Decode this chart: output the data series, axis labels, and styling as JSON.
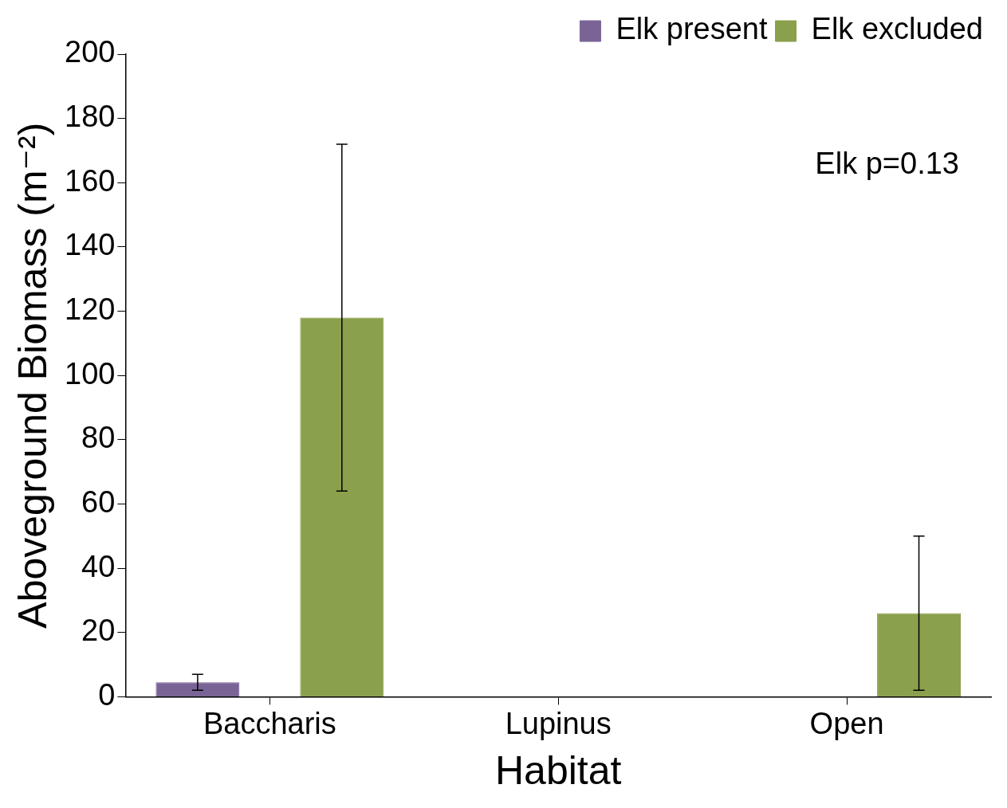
{
  "chart_data": {
    "type": "bar",
    "xlabel": "Habitat",
    "ylabel": "Aboveground Biomass (m⁻²)",
    "categories": [
      "Baccharis",
      "Lupinus",
      "Open"
    ],
    "series": [
      {
        "name": "Elk present",
        "color": "#7a6496",
        "values": [
          4.5,
          0,
          0
        ],
        "errors": [
          2.5,
          null,
          null
        ]
      },
      {
        "name": "Elk excluded",
        "color": "#8aa04c",
        "values": [
          118,
          0,
          26
        ],
        "errors": [
          54,
          null,
          24
        ]
      }
    ],
    "ylim": [
      0,
      200
    ],
    "yticks": [
      0,
      20,
      40,
      60,
      80,
      100,
      120,
      140,
      160,
      180,
      200
    ],
    "grid": false,
    "legend": "top right",
    "annotations": [
      "Elk p=0.13"
    ]
  }
}
